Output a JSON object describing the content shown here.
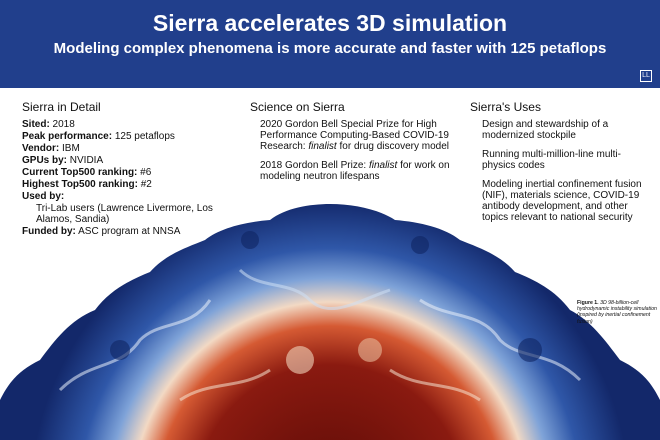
{
  "header": {
    "title": "Sierra accelerates 3D simulation",
    "subtitle": "Modeling complex phenomena is more accurate and faster with 125 petaflops",
    "logo": "LL"
  },
  "detail": {
    "heading": "Sierra in Detail",
    "sited_k": "Sited:",
    "sited_v": " 2018",
    "peak_k": "Peak performance:",
    "peak_v": " 125 petaflops",
    "vendor_k": "Vendor:",
    "vendor_v": " IBM",
    "gpus_k": "GPUs by:",
    "gpus_v": " NVIDIA",
    "current_k": "Current Top500 ranking:",
    "current_v": " #6",
    "highest_k": "Highest Top500 ranking:",
    "highest_v": " #2",
    "used_k": "Used by:",
    "used_v": "Tri-Lab users (Lawrence Livermore, Los Alamos, Sandia)",
    "funded_k": "Funded by:",
    "funded_v": " ASC program at NNSA"
  },
  "science": {
    "heading": "Science on Sierra",
    "item1_a": "2020 Gordon Bell Special Prize for High Performance Computing-Based COVID-19 Research: ",
    "item1_em": "finalist",
    "item1_b": " for drug discovery model",
    "item2_a": "2018 Gordon Bell Prize: ",
    "item2_em": "finalist",
    "item2_b": " for work on modeling neutron lifespans"
  },
  "uses": {
    "heading": "Sierra's Uses",
    "items": [
      "Design and stewardship of a modernized stockpile",
      "Running multi-million-line multi-physics codes",
      "Modeling inertial confinement fusion (NIF), materials science, COVID-19 antibody development, and other topics relevant to national security"
    ]
  },
  "caption": {
    "label": "Figure 1.",
    "text": " 3D 98-billion-cell hydrodynamic instability simulation (inspired by inertial confinement fusion)"
  },
  "colors": {
    "banner": "#213f8c",
    "outer_blue": "#1c3a8a",
    "light_blue": "#6f95d0",
    "cream": "#f3ddc8",
    "orange": "#d9572e",
    "dark_red": "#7a140c"
  }
}
